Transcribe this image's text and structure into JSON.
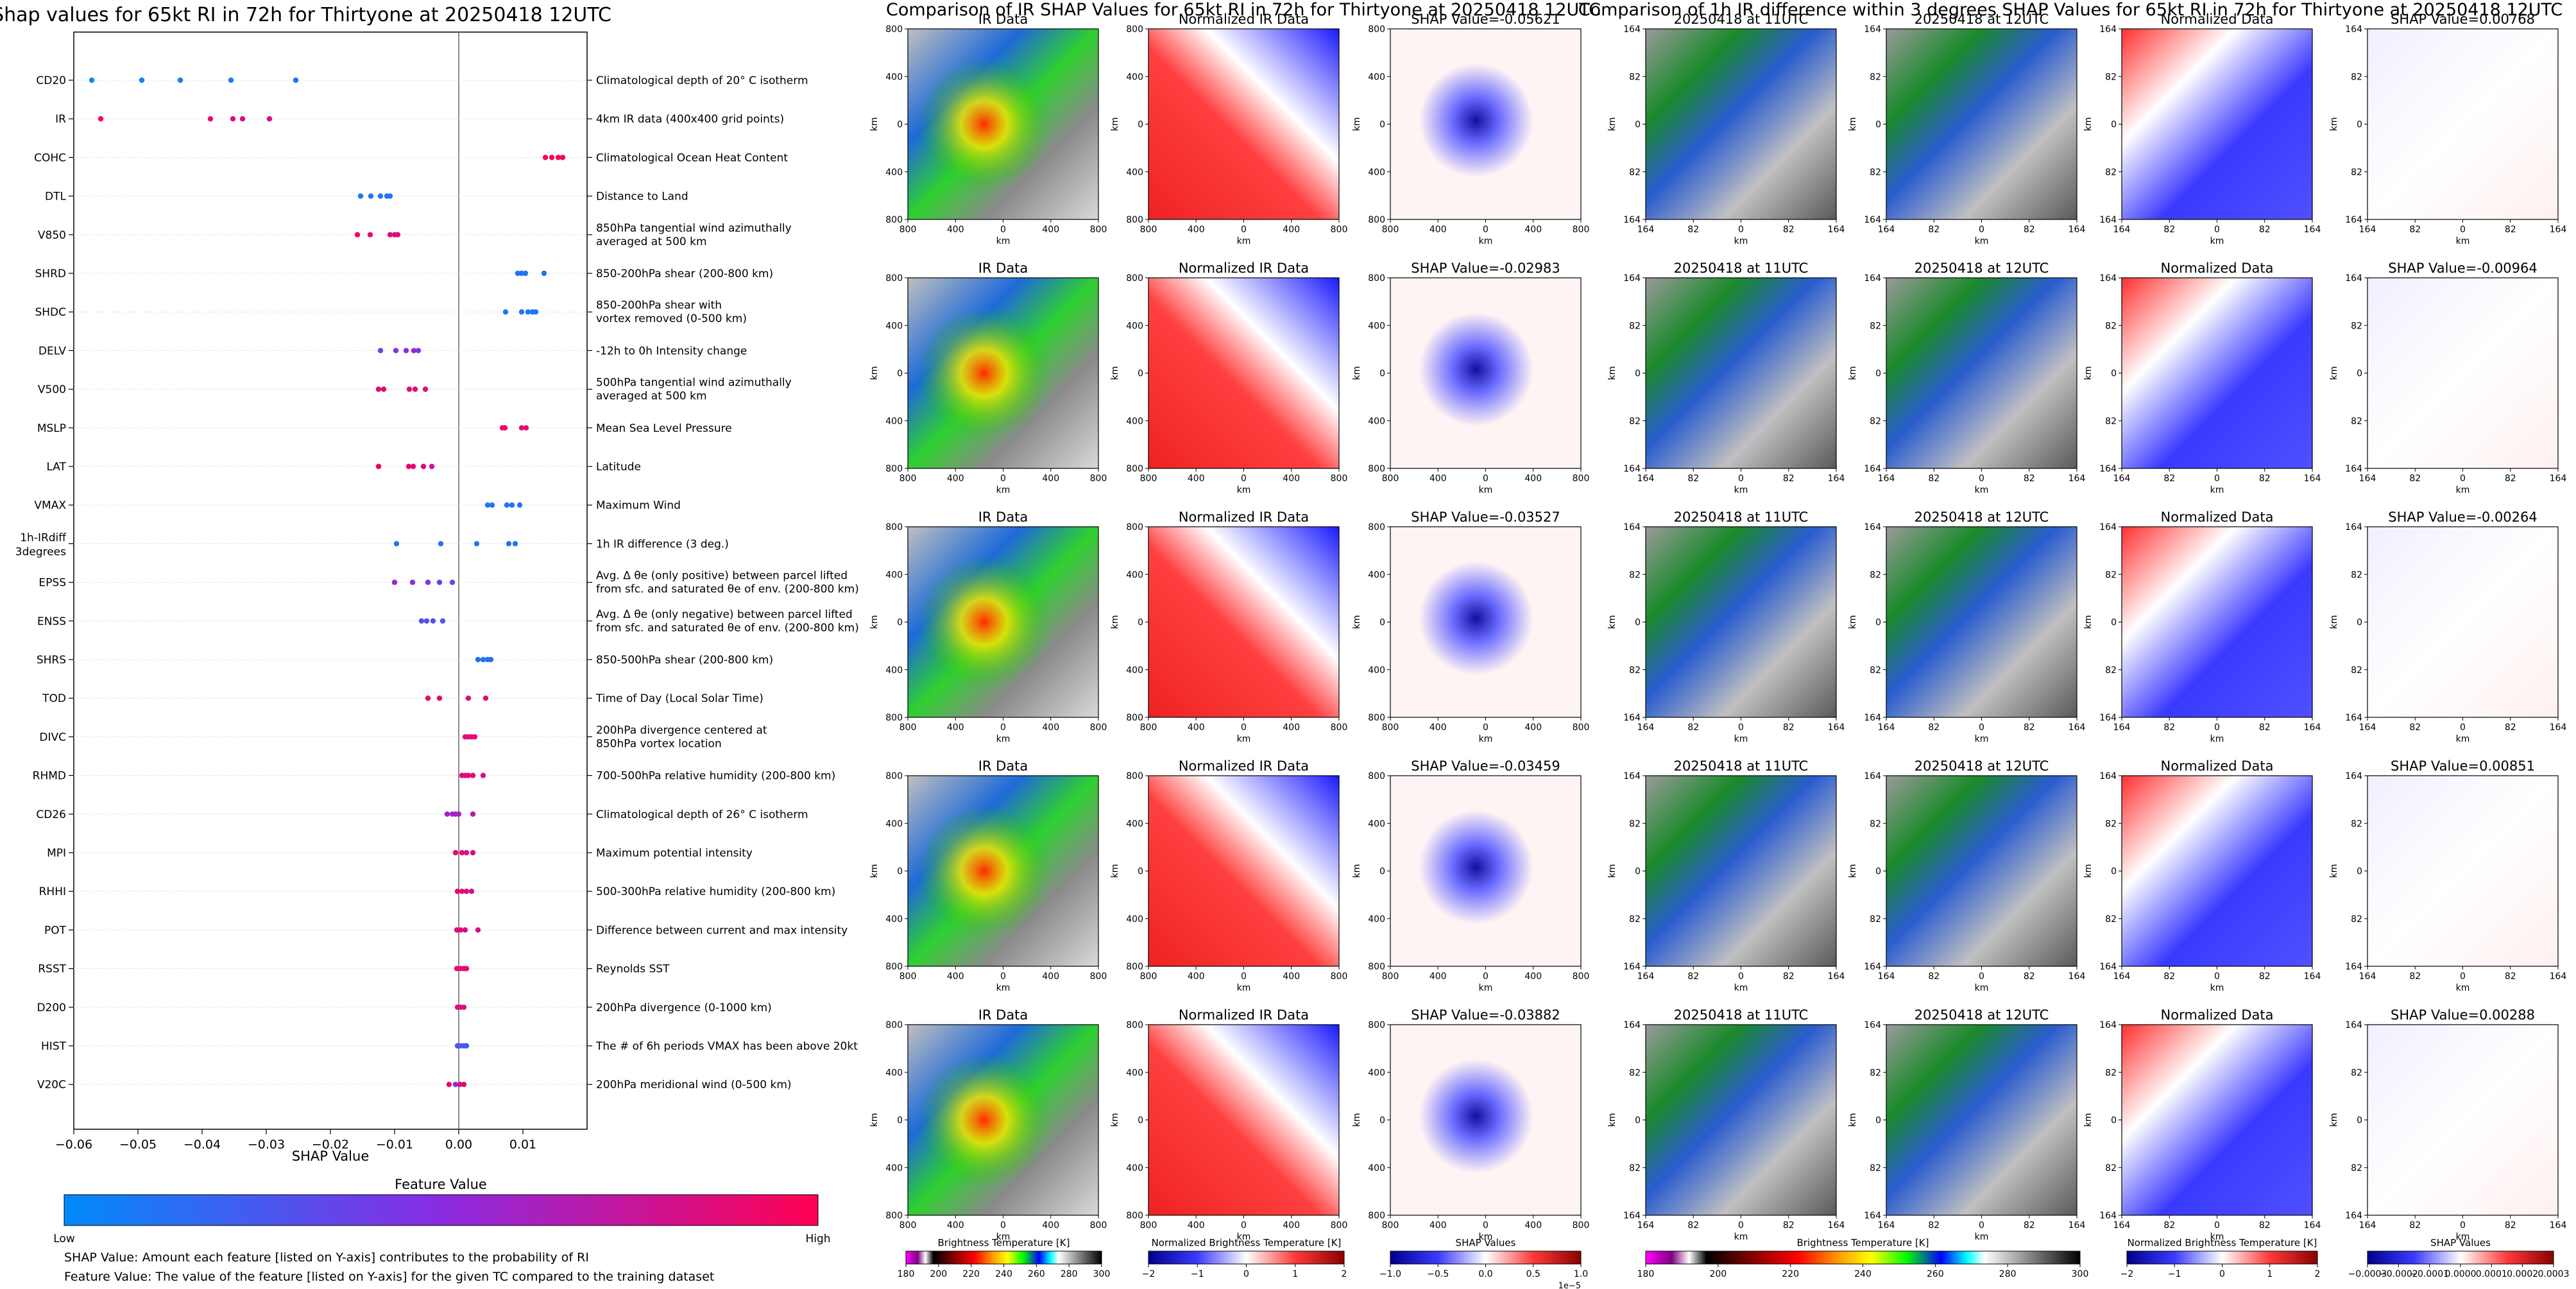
{
  "left_panel": {
    "title": "Shap values for 65kt RI in 72h for Thirtyone at 20250418 12UTC",
    "xlabel": "SHAP Value",
    "colorbar_title": "Feature Value",
    "colorbar_low": "Low",
    "colorbar_high": "High",
    "footnote_1": "SHAP Value: Amount each feature [listed on Y-axis] contributes to the probability of RI",
    "footnote_2": "Feature Value: The value of the feature [listed on Y-axis] for the given TC compared to the training dataset"
  },
  "chart_data": [
    {
      "type": "scatter",
      "title": "Shap values for 65kt RI in 72h for Thirtyone at 20250418 12UTC",
      "xlabel": "SHAP Value",
      "xlim": [
        -0.06,
        0.02
      ],
      "xticks": [
        -0.06,
        -0.05,
        -0.04,
        -0.03,
        -0.02,
        -0.01,
        0.0,
        0.01
      ],
      "xtick_labels": [
        "−0.06",
        "−0.05",
        "−0.04",
        "−0.03",
        "−0.02",
        "−0.01",
        "0.00",
        "0.01"
      ],
      "grid": false,
      "colors": {
        "low": "#008afb",
        "mid": "#8a2be2",
        "high": "#ff0052"
      },
      "features": [
        {
          "code": "CD20",
          "desc": [
            "Climatological depth of 20° C isotherm"
          ],
          "points": [
            [
              -0.0572,
              0
            ],
            [
              -0.0494,
              0.02
            ],
            [
              -0.0434,
              0.04
            ],
            [
              -0.0355,
              0.06
            ],
            [
              -0.0254,
              0.08
            ]
          ]
        },
        {
          "code": "IR",
          "desc": [
            "4km IR data (400x400 grid points)"
          ],
          "points": [
            [
              -0.0558,
              0.98
            ],
            [
              -0.0387,
              0.9
            ],
            [
              -0.0352,
              0.85
            ],
            [
              -0.0337,
              0.82
            ],
            [
              -0.0295,
              0.8
            ]
          ]
        },
        {
          "code": "COHC",
          "desc": [
            "Climatological Ocean Heat Content"
          ],
          "points": [
            [
              0.0135,
              0.95
            ],
            [
              0.0145,
              0.95
            ],
            [
              0.0155,
              0.97
            ],
            [
              0.0162,
              0.92
            ]
          ]
        },
        {
          "code": "DTL",
          "desc": [
            "Distance to Land"
          ],
          "points": [
            [
              -0.0153,
              0.1
            ],
            [
              -0.0137,
              0.12
            ],
            [
              -0.0122,
              0.1
            ],
            [
              -0.0112,
              0.15
            ],
            [
              -0.0107,
              0.12
            ]
          ]
        },
        {
          "code": "V850",
          "desc": [
            "850hPa tangential wind azimuthally",
            "averaged at 500 km"
          ],
          "points": [
            [
              -0.0158,
              0.95
            ],
            [
              -0.0138,
              0.9
            ],
            [
              -0.0107,
              0.88
            ],
            [
              -0.01,
              0.85
            ],
            [
              -0.0095,
              0.9
            ]
          ]
        },
        {
          "code": "SHRD",
          "desc": [
            "850-200hPa shear (200-800 km)"
          ],
          "points": [
            [
              0.0092,
              0.1
            ],
            [
              0.0098,
              0.12
            ],
            [
              0.0104,
              0.1
            ],
            [
              0.0133,
              0.15
            ]
          ]
        },
        {
          "code": "SHDC",
          "desc": [
            "850-200hPa shear with",
            "vortex removed (0-500 km)"
          ],
          "points": [
            [
              0.0073,
              0.1
            ],
            [
              0.0098,
              0.12
            ],
            [
              0.0108,
              0.1
            ],
            [
              0.0115,
              0.12
            ],
            [
              0.012,
              0.1
            ]
          ]
        },
        {
          "code": "DELV",
          "desc": [
            "-12h to 0h Intensity change"
          ],
          "points": [
            [
              -0.0122,
              0.4
            ],
            [
              -0.0098,
              0.45
            ],
            [
              -0.0082,
              0.5
            ],
            [
              -0.007,
              0.55
            ],
            [
              -0.0063,
              0.45
            ]
          ]
        },
        {
          "code": "V500",
          "desc": [
            "500hPa tangential wind azimuthally",
            "averaged at 500 km"
          ],
          "points": [
            [
              -0.0125,
              0.9
            ],
            [
              -0.0117,
              0.88
            ],
            [
              -0.0077,
              0.85
            ],
            [
              -0.0068,
              0.88
            ],
            [
              -0.0052,
              0.85
            ]
          ]
        },
        {
          "code": "MSLP",
          "desc": [
            "Mean Sea Level Pressure"
          ],
          "points": [
            [
              0.0068,
              0.95
            ],
            [
              0.0072,
              0.9
            ],
            [
              0.0098,
              0.88
            ],
            [
              0.0105,
              0.9
            ]
          ]
        },
        {
          "code": "LAT",
          "desc": [
            "Latitude"
          ],
          "points": [
            [
              -0.0125,
              0.95
            ],
            [
              -0.0078,
              0.9
            ],
            [
              -0.0071,
              0.88
            ],
            [
              -0.0055,
              0.82
            ],
            [
              -0.0042,
              0.75
            ]
          ]
        },
        {
          "code": "VMAX",
          "desc": [
            "Maximum Wind"
          ],
          "points": [
            [
              0.0045,
              0.1
            ],
            [
              0.0052,
              0.12
            ],
            [
              0.0075,
              0.1
            ],
            [
              0.0083,
              0.15
            ],
            [
              0.0095,
              0.12
            ]
          ]
        },
        {
          "code": "1h-IRdiff 3degrees",
          "desc": [
            "1h IR difference (3 deg.)"
          ],
          "points": [
            [
              -0.0097,
              0.1
            ],
            [
              -0.0028,
              0.12
            ],
            [
              0.0028,
              0.1
            ],
            [
              0.0078,
              0.15
            ],
            [
              0.0088,
              0.1
            ]
          ]
        },
        {
          "code": "EPSS",
          "desc": [
            "Avg. Δ θe (only positive) between parcel lifted",
            "from sfc. and saturated θe of env. (200-800 km)"
          ],
          "points": [
            [
              -0.01,
              0.55
            ],
            [
              -0.0072,
              0.5
            ],
            [
              -0.0048,
              0.45
            ],
            [
              -0.003,
              0.4
            ],
            [
              -0.001,
              0.35
            ]
          ]
        },
        {
          "code": "ENSS",
          "desc": [
            "Avg. Δ θe (only negative) between parcel lifted",
            "from sfc. and saturated θe of env. (200-800 km)"
          ],
          "points": [
            [
              -0.0058,
              0.35
            ],
            [
              -0.005,
              0.3
            ],
            [
              -0.004,
              0.32
            ],
            [
              -0.0025,
              0.25
            ]
          ]
        },
        {
          "code": "SHRS",
          "desc": [
            "850-500hPa shear (200-800 km)"
          ],
          "points": [
            [
              0.003,
              0.15
            ],
            [
              0.0038,
              0.12
            ],
            [
              0.0045,
              0.15
            ],
            [
              0.005,
              0.2
            ]
          ]
        },
        {
          "code": "TOD",
          "desc": [
            "Time of Day (Local Solar Time)"
          ],
          "points": [
            [
              -0.0048,
              0.95
            ],
            [
              -0.003,
              0.9
            ],
            [
              0.0015,
              0.88
            ],
            [
              0.0042,
              0.85
            ]
          ]
        },
        {
          "code": "DIVC",
          "desc": [
            "200hPa divergence centered at",
            "850hPa vortex location"
          ],
          "points": [
            [
              0.001,
              0.9
            ],
            [
              0.0015,
              0.85
            ],
            [
              0.002,
              0.88
            ],
            [
              0.0025,
              0.9
            ]
          ]
        },
        {
          "code": "RHMD",
          "desc": [
            "700-500hPa relative humidity (200-800 km)"
          ],
          "points": [
            [
              0.0005,
              0.9
            ],
            [
              0.001,
              0.85
            ],
            [
              0.0015,
              0.88
            ],
            [
              0.0022,
              0.9
            ],
            [
              0.0038,
              0.85
            ]
          ]
        },
        {
          "code": "CD26",
          "desc": [
            "Climatological depth of 26° C isotherm"
          ],
          "points": [
            [
              -0.0018,
              0.6
            ],
            [
              -0.001,
              0.55
            ],
            [
              -0.0005,
              0.65
            ],
            [
              0.0,
              0.6
            ],
            [
              0.0022,
              0.7
            ]
          ]
        },
        {
          "code": "MPI",
          "desc": [
            "Maximum potential intensity"
          ],
          "points": [
            [
              -0.0005,
              0.9
            ],
            [
              0.0005,
              0.85
            ],
            [
              0.0012,
              0.8
            ],
            [
              0.0022,
              0.88
            ]
          ]
        },
        {
          "code": "RHHI",
          "desc": [
            "500-300hPa relative humidity (200-800 km)"
          ],
          "points": [
            [
              -0.0002,
              0.9
            ],
            [
              0.0005,
              0.85
            ],
            [
              0.0012,
              0.88
            ],
            [
              0.002,
              0.8
            ]
          ]
        },
        {
          "code": "POT",
          "desc": [
            "Difference between current and max intensity"
          ],
          "points": [
            [
              -0.0003,
              0.85
            ],
            [
              0.0003,
              0.9
            ],
            [
              0.001,
              0.8
            ],
            [
              0.003,
              0.85
            ]
          ]
        },
        {
          "code": "RSST",
          "desc": [
            "Reynolds SST"
          ],
          "points": [
            [
              -0.0003,
              0.9
            ],
            [
              0.0003,
              0.85
            ],
            [
              0.0008,
              0.88
            ],
            [
              0.0012,
              0.9
            ]
          ]
        },
        {
          "code": "D200",
          "desc": [
            "200hPa divergence (0-1000 km)"
          ],
          "points": [
            [
              -0.0002,
              0.85
            ],
            [
              0.0003,
              0.9
            ],
            [
              0.0008,
              0.8
            ]
          ]
        },
        {
          "code": "HIST",
          "desc": [
            "The # of 6h periods VMAX has been above 20kt"
          ],
          "points": [
            [
              -0.0002,
              0.3
            ],
            [
              0.0003,
              0.25
            ],
            [
              0.0008,
              0.3
            ],
            [
              0.0012,
              0.25
            ]
          ]
        },
        {
          "code": "V20C",
          "desc": [
            "200hPa meridional wind (0-500 km)"
          ],
          "points": [
            [
              -0.0015,
              0.9
            ],
            [
              -0.0005,
              0.5
            ],
            [
              0.0002,
              0.85
            ],
            [
              0.0008,
              0.9
            ]
          ]
        }
      ]
    },
    {
      "type": "heatmap",
      "title": "Comparison of IR SHAP Values for 65kt RI in 72h for Thirtyone at 20250418 12UTC",
      "panel_titles": [
        "IR Data",
        "Normalized IR Data"
      ],
      "shap_titles": [
        "SHAP Value=-0.05621",
        "SHAP Value=-0.02983",
        "SHAP Value=-0.03527",
        "SHAP Value=-0.03459",
        "SHAP Value=-0.03882"
      ],
      "xlabel": "km",
      "ylabel": "km",
      "tick_labels": [
        "800",
        "400",
        "0",
        "400",
        "800"
      ],
      "colorbars": [
        {
          "label": "Brightness Temperature [K]",
          "ticks": [
            "180",
            "200",
            "220",
            "240",
            "260",
            "280",
            "300"
          ]
        },
        {
          "label": "Normalized Brightness Temperature [K]",
          "ticks": [
            "−2",
            "−1",
            "0",
            "1",
            "2"
          ]
        },
        {
          "label": "SHAP Values",
          "ticks": [
            "−1.0",
            "−0.5",
            "0.0",
            "0.5",
            "1.0"
          ],
          "exponent": "1e−5"
        }
      ]
    },
    {
      "type": "heatmap",
      "title": "Comparison of 1h IR difference within 3 degrees SHAP Values for 65kt RI in 72h for Thirtyone at 20250418 12UTC",
      "panel_titles": [
        "20250418 at 11UTC",
        "20250418 at 12UTC",
        "Normalized Data"
      ],
      "shap_titles": [
        "SHAP Value=0.00768",
        "SHAP Value=-0.00964",
        "SHAP Value=-0.00264",
        "SHAP Value=0.00851",
        "SHAP Value=0.00288"
      ],
      "xlabel": "km",
      "ylabel": "km",
      "tick_labels": [
        "164",
        "82",
        "0",
        "82",
        "164"
      ],
      "colorbars": [
        {
          "label": "Brightness Temperature [K]",
          "ticks": [
            "180",
            "200",
            "220",
            "240",
            "260",
            "280",
            "300"
          ]
        },
        {
          "label": "Normalized Brightness Temperature [K]",
          "ticks": [
            "−2",
            "−1",
            "0",
            "1",
            "2"
          ]
        },
        {
          "label": "SHAP Values",
          "ticks": [
            "−0.0003",
            "−0.0002",
            "−0.0001",
            "0.0000",
            "0.0001",
            "0.0002",
            "0.0003"
          ]
        }
      ]
    }
  ]
}
